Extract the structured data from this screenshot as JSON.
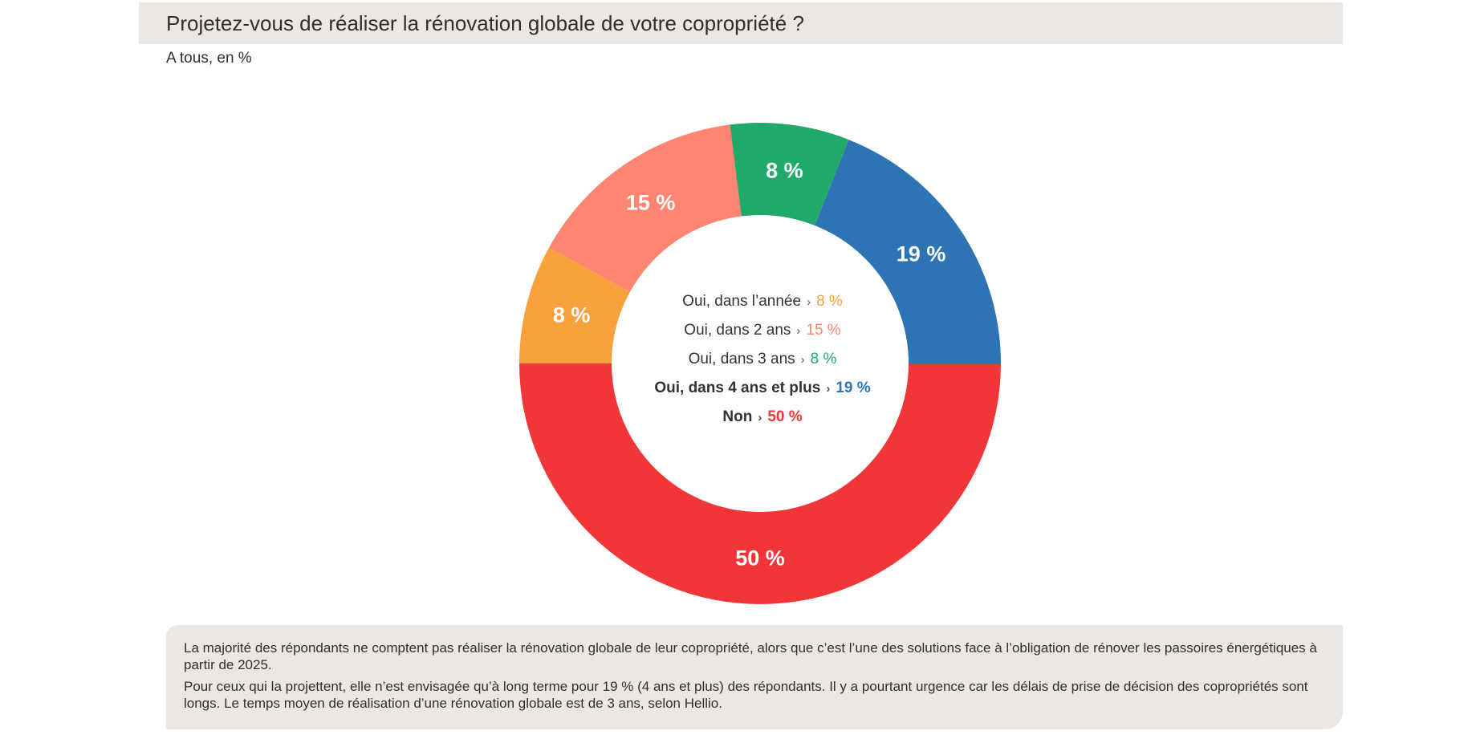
{
  "header": {
    "title": "Projetez-vous de réaliser la rénovation globale de votre copropriété ?",
    "subtitle": "A tous, en %"
  },
  "chart_data": {
    "type": "pie",
    "style": "donut",
    "categories": [
      "Oui, dans l'année",
      "Oui, dans 2 ans",
      "Oui, dans 3 ans",
      "Oui, dans 4 ans et plus",
      "Non"
    ],
    "values": [
      8,
      15,
      8,
      19,
      50
    ],
    "value_labels": [
      "8 %",
      "15 %",
      "8 %",
      "19 %",
      "50 %"
    ],
    "colors": [
      "#f8a13d",
      "#fd8572",
      "#21a86b",
      "#2d74b5",
      "#f03638"
    ],
    "legend_position": "center"
  },
  "legend": {
    "arrow": "›",
    "items": [
      {
        "label": "Oui, dans l’année",
        "value": "8 %"
      },
      {
        "label": "Oui, dans 2 ans",
        "value": "15 %"
      },
      {
        "label": "Oui, dans 3 ans",
        "value": "8 %"
      },
      {
        "label": "Oui, dans 4 ans et plus",
        "value": "19 %"
      },
      {
        "label": "Non",
        "value": "50 %"
      }
    ]
  },
  "note": {
    "paragraph1": "La majorité des répondants ne comptent pas réaliser la rénovation globale de leur copropriété, alors que c’est l’une des solutions face à l’obligation de rénover les passoires énergétiques à partir de 2025.",
    "paragraph2": "Pour ceux qui la projettent, elle n’est envisagée qu’à long terme pour 19 % (4 ans et plus) des répondants. Il y a pourtant urgence car les délais de prise de décision des copropriétés sont longs. Le temps moyen de réalisation d’une rénovation globale est de 3 ans, selon Hellio."
  }
}
